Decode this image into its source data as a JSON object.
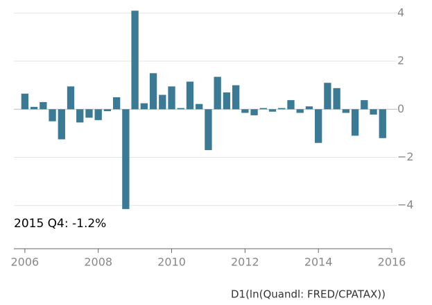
{
  "chart_data": {
    "type": "bar",
    "color": "#3b7a94",
    "annotation": "2015 Q4: -1.2%",
    "xlabel": "D1(ln(Quandl: FRED/CPATAX))",
    "x": [
      2006,
      2006.25,
      2006.5,
      2006.75,
      2007,
      2007.25,
      2007.5,
      2007.75,
      2008,
      2008.25,
      2008.5,
      2008.75,
      2009,
      2009.25,
      2009.5,
      2009.75,
      2010,
      2010.25,
      2010.5,
      2010.75,
      2011,
      2011.25,
      2011.5,
      2011.75,
      2012,
      2012.25,
      2012.5,
      2012.75,
      2013,
      2013.25,
      2013.5,
      2013.75,
      2014,
      2014.25,
      2014.5,
      2014.75,
      2015,
      2015.25,
      2015.5,
      2015.75
    ],
    "values": [
      0.65,
      0.1,
      0.3,
      -0.5,
      -1.25,
      0.95,
      -0.55,
      -0.35,
      -0.45,
      -0.08,
      0.5,
      -4.15,
      4.1,
      0.25,
      1.5,
      0.6,
      0.95,
      0.05,
      1.15,
      0.22,
      -1.7,
      1.35,
      0.7,
      1.0,
      -0.15,
      -0.25,
      0.05,
      -0.1,
      0.05,
      0.38,
      -0.15,
      0.12,
      -1.4,
      1.1,
      0.88,
      -0.15,
      -1.1,
      0.38,
      -0.22,
      -1.2
    ],
    "xlim": [
      2005.7,
      2016
    ],
    "xticks": [
      2006,
      2008,
      2010,
      2012,
      2014,
      2016
    ],
    "ylim": [
      -5.8,
      4.4
    ],
    "yticks": [
      {
        "value": -4,
        "label": "−4"
      },
      {
        "value": -2,
        "label": "−2"
      },
      0,
      2,
      4
    ],
    "grid": true
  }
}
